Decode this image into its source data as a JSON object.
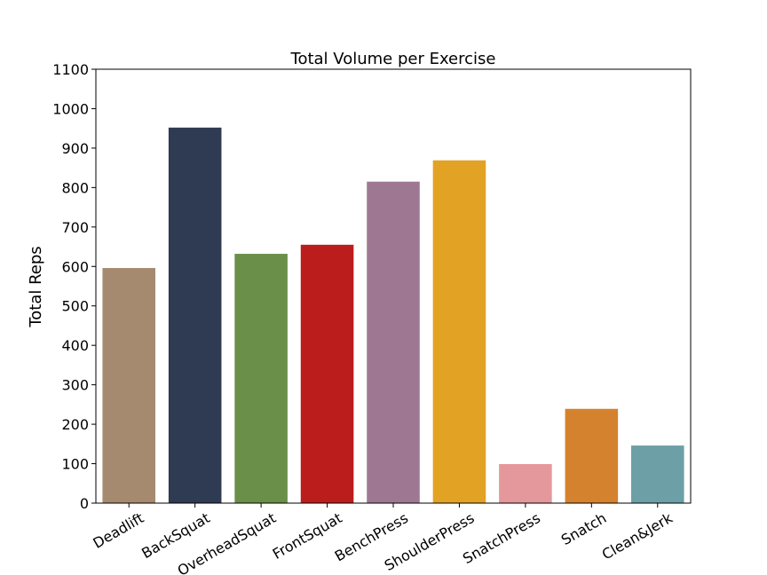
{
  "chart_data": {
    "type": "bar",
    "title": "Total Volume per Exercise",
    "xlabel": "",
    "ylabel": "Total Reps",
    "categories": [
      "Deadlift",
      "BackSquat",
      "OverheadSquat",
      "FrontSquat",
      "BenchPress",
      "ShoulderPress",
      "SnatchPress",
      "Snatch",
      "Clean&Jerk"
    ],
    "values": [
      596,
      952,
      632,
      655,
      815,
      869,
      99,
      239,
      146
    ],
    "colors": [
      "#a68a6f",
      "#2f3a53",
      "#6a8f48",
      "#bb1d1d",
      "#9e7892",
      "#e2a223",
      "#e5989b",
      "#d5822e",
      "#6d9fa6"
    ],
    "ylim": [
      0,
      1100
    ],
    "yticks": [
      0,
      100,
      200,
      300,
      400,
      500,
      600,
      700,
      800,
      900,
      1000,
      1100
    ],
    "grid": false,
    "legend": "none"
  }
}
